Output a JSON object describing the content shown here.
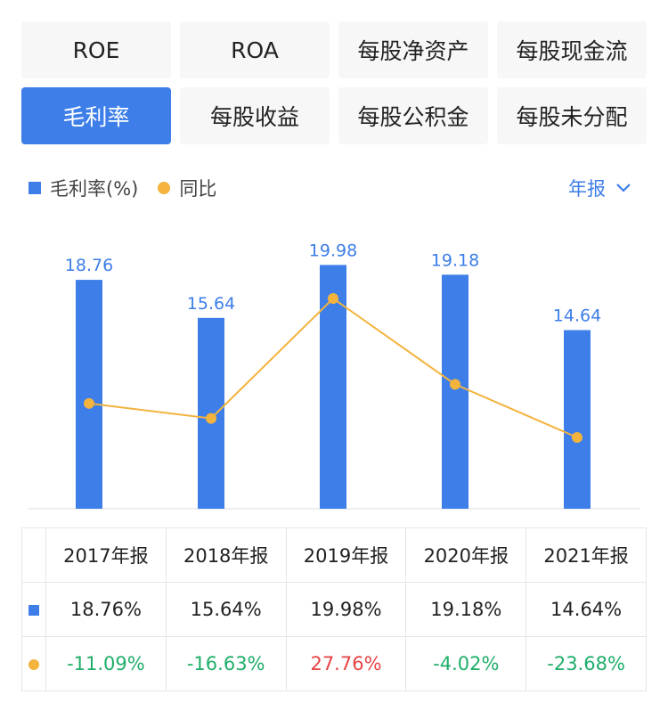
{
  "tabs": [
    {
      "label": "ROE",
      "active": false
    },
    {
      "label": "ROA",
      "active": false
    },
    {
      "label": "每股净资产",
      "active": false
    },
    {
      "label": "每股现金流",
      "active": false
    },
    {
      "label": "毛利率",
      "active": true
    },
    {
      "label": "每股收益",
      "active": false
    },
    {
      "label": "每股公积金",
      "active": false
    },
    {
      "label": "每股未分配",
      "active": false
    }
  ],
  "legend": {
    "bar_label": "毛利率(%)",
    "line_label": "同比"
  },
  "period_selector": {
    "label": "年报",
    "icon": "chevron-down-icon"
  },
  "colors": {
    "bar": "#3d7ee8",
    "line": "#f3b33d",
    "positive": "#e84444",
    "negative": "#1fae6a"
  },
  "chart_data": {
    "type": "bar",
    "categories": [
      "2017年报",
      "2018年报",
      "2019年报",
      "2020年报",
      "2021年报"
    ],
    "series": [
      {
        "name": "毛利率(%)",
        "type": "bar",
        "values": [
          18.76,
          15.64,
          19.98,
          19.18,
          14.64
        ],
        "data_labels": [
          "18.76",
          "15.64",
          "19.98",
          "19.18",
          "14.64"
        ]
      },
      {
        "name": "同比",
        "type": "line",
        "values": [
          -11.09,
          -16.63,
          27.76,
          -4.02,
          -23.68
        ]
      }
    ],
    "grid": false,
    "legend_position": "top-left"
  },
  "table": {
    "headers": [
      "2017年报",
      "2018年报",
      "2019年报",
      "2020年报",
      "2021年报"
    ],
    "rows": [
      {
        "marker": "bar",
        "cells": [
          "18.76%",
          "15.64%",
          "19.98%",
          "19.18%",
          "14.64%"
        ]
      },
      {
        "marker": "line",
        "cells": [
          "-11.09%",
          "-16.63%",
          "27.76%",
          "-4.02%",
          "-23.68%"
        ]
      }
    ]
  }
}
